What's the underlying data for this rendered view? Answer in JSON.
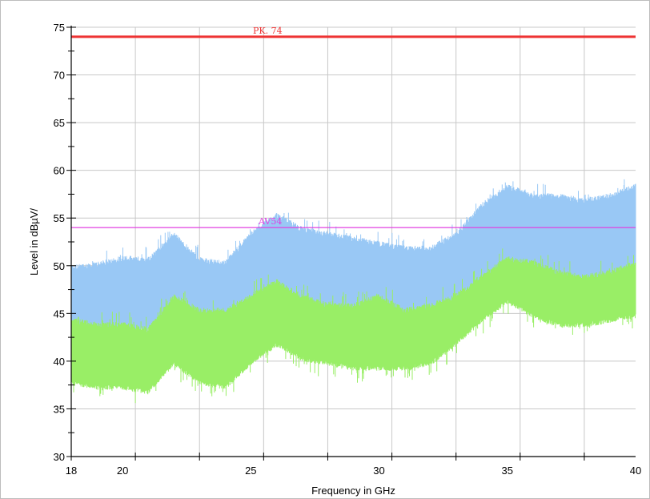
{
  "chart_data": {
    "type": "line",
    "title": "",
    "xlabel": "Frequency in GHz",
    "ylabel": "Level in dBµV/",
    "xlim": [
      18,
      40
    ],
    "ylim": [
      30,
      75
    ],
    "grid": true,
    "x_ticks": [
      18,
      20,
      25,
      30,
      35,
      40
    ],
    "y_ticks": [
      30,
      35,
      40,
      45,
      50,
      55,
      60,
      65,
      70,
      75
    ],
    "limit_lines": [
      {
        "label": "PK. 74",
        "value": 74,
        "color": "#ee3333"
      },
      {
        "label": "AV54",
        "value": 54,
        "color": "#e040e0"
      }
    ],
    "series": [
      {
        "color": "#99c8f5",
        "x": [
          18,
          19,
          20,
          21,
          22,
          23,
          24,
          25,
          26,
          27,
          28,
          29,
          30,
          31,
          32,
          33,
          34,
          35,
          36,
          37,
          38,
          39,
          40
        ],
        "upper": [
          49.5,
          49.8,
          50.5,
          50.3,
          53.0,
          50.3,
          50.0,
          53.0,
          55.0,
          53.5,
          53.0,
          52.5,
          52.0,
          51.5,
          51.5,
          53.0,
          56.0,
          58.0,
          57.0,
          57.0,
          56.5,
          57.0,
          58.0
        ],
        "lower": [
          44.0,
          43.5,
          43.5,
          43.5,
          45.0,
          43.5,
          43.0,
          45.0,
          47.0,
          46.5,
          45.5,
          45.5,
          45.0,
          45.0,
          45.0,
          46.5,
          49.0,
          50.0,
          49.0,
          49.0,
          48.5,
          48.5,
          49.0
        ]
      },
      {
        "color": "#99ee66",
        "x": [
          18,
          19,
          20,
          21,
          22,
          23,
          24,
          25,
          26,
          27,
          28,
          29,
          30,
          31,
          32,
          33,
          34,
          35,
          36,
          37,
          38,
          39,
          40
        ],
        "upper": [
          44.0,
          43.5,
          43.5,
          43.0,
          46.5,
          45.0,
          45.0,
          46.5,
          48.0,
          46.5,
          45.5,
          45.5,
          46.5,
          45.0,
          45.5,
          46.5,
          48.5,
          50.5,
          50.0,
          49.0,
          48.5,
          49.0,
          50.0
        ],
        "lower": [
          38.0,
          37.5,
          37.5,
          37.0,
          40.0,
          38.0,
          37.5,
          40.0,
          42.0,
          40.5,
          40.0,
          39.5,
          39.5,
          39.5,
          40.0,
          42.0,
          44.5,
          46.5,
          45.0,
          44.0,
          44.0,
          44.5,
          45.0
        ]
      }
    ]
  }
}
